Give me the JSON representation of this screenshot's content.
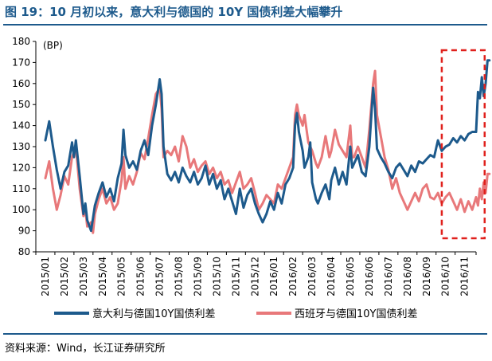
{
  "title": "图 19：10 月初以来，意大利与德国的 10Y 国债利差大幅攀升",
  "source": "资料来源：Wind，长江证券研究所",
  "colors": {
    "title": "#1d5a8c",
    "italy": "#1d5a8c",
    "spain": "#e8787a",
    "highlight": "#e0201c"
  },
  "chart_data": {
    "type": "line",
    "unit_label": "(BP)",
    "ylim": [
      80,
      180
    ],
    "yticks": [
      80,
      90,
      100,
      110,
      120,
      130,
      140,
      150,
      160,
      170,
      180
    ],
    "categories": [
      "2015/01",
      "2015/02",
      "2015/03",
      "2015/04",
      "2015/05",
      "2015/06",
      "2015/07",
      "2015/08",
      "2015/09",
      "2015/10",
      "2015/11",
      "2015/12",
      "2016/01",
      "2016/02",
      "2016/03",
      "2016/04",
      "2016/05",
      "2016/06",
      "2016/07",
      "2016/08",
      "2016/09",
      "2016/10",
      "2016/11"
    ],
    "highlight": {
      "from": 21.3,
      "to": 23.55,
      "label": ""
    },
    "series": [
      {
        "name": "意大利与德国10Y国债利差",
        "color": "#1d5a8c",
        "values": [
          [
            0.0,
            133
          ],
          [
            0.2,
            142
          ],
          [
            0.4,
            130
          ],
          [
            0.6,
            119
          ],
          [
            0.8,
            110
          ],
          [
            1.0,
            118
          ],
          [
            1.2,
            121
          ],
          [
            1.4,
            132
          ],
          [
            1.5,
            125
          ],
          [
            1.6,
            133
          ],
          [
            1.8,
            116
          ],
          [
            2.0,
            98
          ],
          [
            2.1,
            103
          ],
          [
            2.2,
            95
          ],
          [
            2.4,
            90
          ],
          [
            2.5,
            96
          ],
          [
            2.6,
            102
          ],
          [
            2.8,
            108
          ],
          [
            3.0,
            113
          ],
          [
            3.2,
            106
          ],
          [
            3.4,
            110
          ],
          [
            3.6,
            104
          ],
          [
            3.8,
            115
          ],
          [
            4.0,
            122
          ],
          [
            4.1,
            138
          ],
          [
            4.2,
            126
          ],
          [
            4.4,
            120
          ],
          [
            4.6,
            123
          ],
          [
            4.8,
            119
          ],
          [
            5.0,
            128
          ],
          [
            5.2,
            133
          ],
          [
            5.4,
            126
          ],
          [
            5.6,
            140
          ],
          [
            5.8,
            150
          ],
          [
            6.0,
            162
          ],
          [
            6.1,
            155
          ],
          [
            6.2,
            130
          ],
          [
            6.4,
            117
          ],
          [
            6.6,
            114
          ],
          [
            6.8,
            118
          ],
          [
            7.0,
            113
          ],
          [
            7.2,
            120
          ],
          [
            7.4,
            116
          ],
          [
            7.6,
            113
          ],
          [
            7.8,
            118
          ],
          [
            8.0,
            112
          ],
          [
            8.2,
            115
          ],
          [
            8.4,
            121
          ],
          [
            8.6,
            112
          ],
          [
            8.8,
            117
          ],
          [
            9.0,
            110
          ],
          [
            9.2,
            114
          ],
          [
            9.4,
            105
          ],
          [
            9.6,
            110
          ],
          [
            9.8,
            104
          ],
          [
            10.0,
            98
          ],
          [
            10.2,
            110
          ],
          [
            10.4,
            101
          ],
          [
            10.6,
            107
          ],
          [
            10.8,
            110
          ],
          [
            11.0,
            103
          ],
          [
            11.2,
            98
          ],
          [
            11.4,
            94
          ],
          [
            11.6,
            98
          ],
          [
            11.8,
            104
          ],
          [
            12.0,
            100
          ],
          [
            12.2,
            108
          ],
          [
            12.4,
            103
          ],
          [
            12.6,
            112
          ],
          [
            12.8,
            115
          ],
          [
            13.0,
            120
          ],
          [
            13.1,
            140
          ],
          [
            13.2,
            146
          ],
          [
            13.3,
            137
          ],
          [
            13.5,
            128
          ],
          [
            13.6,
            120
          ],
          [
            13.8,
            125
          ],
          [
            13.9,
            132
          ],
          [
            14.0,
            113
          ],
          [
            14.2,
            105
          ],
          [
            14.3,
            103
          ],
          [
            14.5,
            108
          ],
          [
            14.7,
            112
          ],
          [
            14.9,
            105
          ],
          [
            15.0,
            114
          ],
          [
            15.2,
            120
          ],
          [
            15.4,
            112
          ],
          [
            15.6,
            118
          ],
          [
            15.8,
            112
          ],
          [
            16.0,
            130
          ],
          [
            16.1,
            120
          ],
          [
            16.2,
            122
          ],
          [
            16.4,
            126
          ],
          [
            16.6,
            118
          ],
          [
            16.8,
            116
          ],
          [
            17.0,
            130
          ],
          [
            17.2,
            158
          ],
          [
            17.3,
            148
          ],
          [
            17.4,
            129
          ],
          [
            17.6,
            125
          ],
          [
            17.8,
            122
          ],
          [
            18.0,
            118
          ],
          [
            18.2,
            115
          ],
          [
            18.4,
            120
          ],
          [
            18.6,
            122
          ],
          [
            18.8,
            119
          ],
          [
            19.0,
            116
          ],
          [
            19.2,
            121
          ],
          [
            19.4,
            118
          ],
          [
            19.6,
            123
          ],
          [
            19.8,
            122
          ],
          [
            20.0,
            124
          ],
          [
            20.2,
            126
          ],
          [
            20.4,
            125
          ],
          [
            20.6,
            133
          ],
          [
            20.8,
            128
          ],
          [
            21.0,
            130
          ],
          [
            21.2,
            131
          ],
          [
            21.4,
            134
          ],
          [
            21.6,
            132
          ],
          [
            21.8,
            135
          ],
          [
            22.0,
            133
          ],
          [
            22.2,
            136
          ],
          [
            22.4,
            137
          ],
          [
            22.6,
            137
          ],
          [
            22.7,
            156
          ],
          [
            22.8,
            153
          ],
          [
            22.9,
            163
          ],
          [
            23.0,
            154
          ],
          [
            23.1,
            160
          ],
          [
            23.2,
            171
          ],
          [
            23.3,
            171
          ]
        ]
      },
      {
        "name": "西班牙与德国10Y国债利差",
        "color": "#e8787a",
        "values": [
          [
            0.0,
            115
          ],
          [
            0.2,
            123
          ],
          [
            0.4,
            110
          ],
          [
            0.6,
            100
          ],
          [
            0.8,
            107
          ],
          [
            1.0,
            116
          ],
          [
            1.2,
            112
          ],
          [
            1.4,
            125
          ],
          [
            1.6,
            130
          ],
          [
            1.8,
            110
          ],
          [
            2.0,
            97
          ],
          [
            2.1,
            100
          ],
          [
            2.2,
            92
          ],
          [
            2.4,
            94
          ],
          [
            2.5,
            89
          ],
          [
            2.6,
            98
          ],
          [
            2.8,
            105
          ],
          [
            3.0,
            110
          ],
          [
            3.2,
            103
          ],
          [
            3.4,
            106
          ],
          [
            3.6,
            100
          ],
          [
            3.8,
            103
          ],
          [
            4.0,
            114
          ],
          [
            4.1,
            125
          ],
          [
            4.2,
            110
          ],
          [
            4.4,
            116
          ],
          [
            4.6,
            112
          ],
          [
            4.8,
            118
          ],
          [
            5.0,
            127
          ],
          [
            5.2,
            124
          ],
          [
            5.4,
            134
          ],
          [
            5.6,
            145
          ],
          [
            5.8,
            155
          ],
          [
            6.0,
            158
          ],
          [
            6.1,
            148
          ],
          [
            6.2,
            125
          ],
          [
            6.4,
            128
          ],
          [
            6.6,
            126
          ],
          [
            6.8,
            130
          ],
          [
            7.0,
            123
          ],
          [
            7.2,
            135
          ],
          [
            7.4,
            130
          ],
          [
            7.6,
            120
          ],
          [
            7.8,
            124
          ],
          [
            8.0,
            118
          ],
          [
            8.2,
            121
          ],
          [
            8.4,
            123
          ],
          [
            8.6,
            117
          ],
          [
            8.8,
            120
          ],
          [
            9.0,
            115
          ],
          [
            9.2,
            118
          ],
          [
            9.4,
            112
          ],
          [
            9.6,
            114
          ],
          [
            9.8,
            108
          ],
          [
            10.0,
            113
          ],
          [
            10.2,
            118
          ],
          [
            10.4,
            110
          ],
          [
            10.6,
            112
          ],
          [
            10.8,
            115
          ],
          [
            11.0,
            108
          ],
          [
            11.2,
            100
          ],
          [
            11.4,
            103
          ],
          [
            11.6,
            107
          ],
          [
            11.8,
            105
          ],
          [
            12.0,
            103
          ],
          [
            12.2,
            112
          ],
          [
            12.4,
            110
          ],
          [
            12.6,
            115
          ],
          [
            12.8,
            120
          ],
          [
            13.0,
            125
          ],
          [
            13.1,
            145
          ],
          [
            13.2,
            150
          ],
          [
            13.3,
            145
          ],
          [
            13.5,
            140
          ],
          [
            13.6,
            145
          ],
          [
            13.8,
            132
          ],
          [
            14.0,
            128
          ],
          [
            14.2,
            122
          ],
          [
            14.3,
            120
          ],
          [
            14.5,
            125
          ],
          [
            14.7,
            135
          ],
          [
            14.9,
            125
          ],
          [
            15.0,
            128
          ],
          [
            15.2,
            138
          ],
          [
            15.4,
            131
          ],
          [
            15.6,
            128
          ],
          [
            15.8,
            125
          ],
          [
            16.0,
            140
          ],
          [
            16.1,
            125
          ],
          [
            16.2,
            125
          ],
          [
            16.4,
            130
          ],
          [
            16.6,
            125
          ],
          [
            16.8,
            120
          ],
          [
            17.0,
            138
          ],
          [
            17.2,
            160
          ],
          [
            17.3,
            166
          ],
          [
            17.4,
            145
          ],
          [
            17.6,
            135
          ],
          [
            17.8,
            125
          ],
          [
            18.0,
            119
          ],
          [
            18.2,
            110
          ],
          [
            18.4,
            115
          ],
          [
            18.6,
            108
          ],
          [
            18.8,
            104
          ],
          [
            19.0,
            100
          ],
          [
            19.2,
            104
          ],
          [
            19.4,
            108
          ],
          [
            19.6,
            104
          ],
          [
            19.8,
            110
          ],
          [
            20.0,
            112
          ],
          [
            20.2,
            106
          ],
          [
            20.4,
            105
          ],
          [
            20.6,
            108
          ],
          [
            20.8,
            103
          ],
          [
            21.0,
            106
          ],
          [
            21.2,
            108
          ],
          [
            21.4,
            104
          ],
          [
            21.6,
            100
          ],
          [
            21.8,
            105
          ],
          [
            22.0,
            99
          ],
          [
            22.2,
            104
          ],
          [
            22.4,
            100
          ],
          [
            22.6,
            106
          ],
          [
            22.7,
            102
          ],
          [
            22.8,
            110
          ],
          [
            22.9,
            105
          ],
          [
            23.0,
            113
          ],
          [
            23.1,
            108
          ],
          [
            23.2,
            117
          ],
          [
            23.3,
            117
          ]
        ]
      }
    ]
  }
}
